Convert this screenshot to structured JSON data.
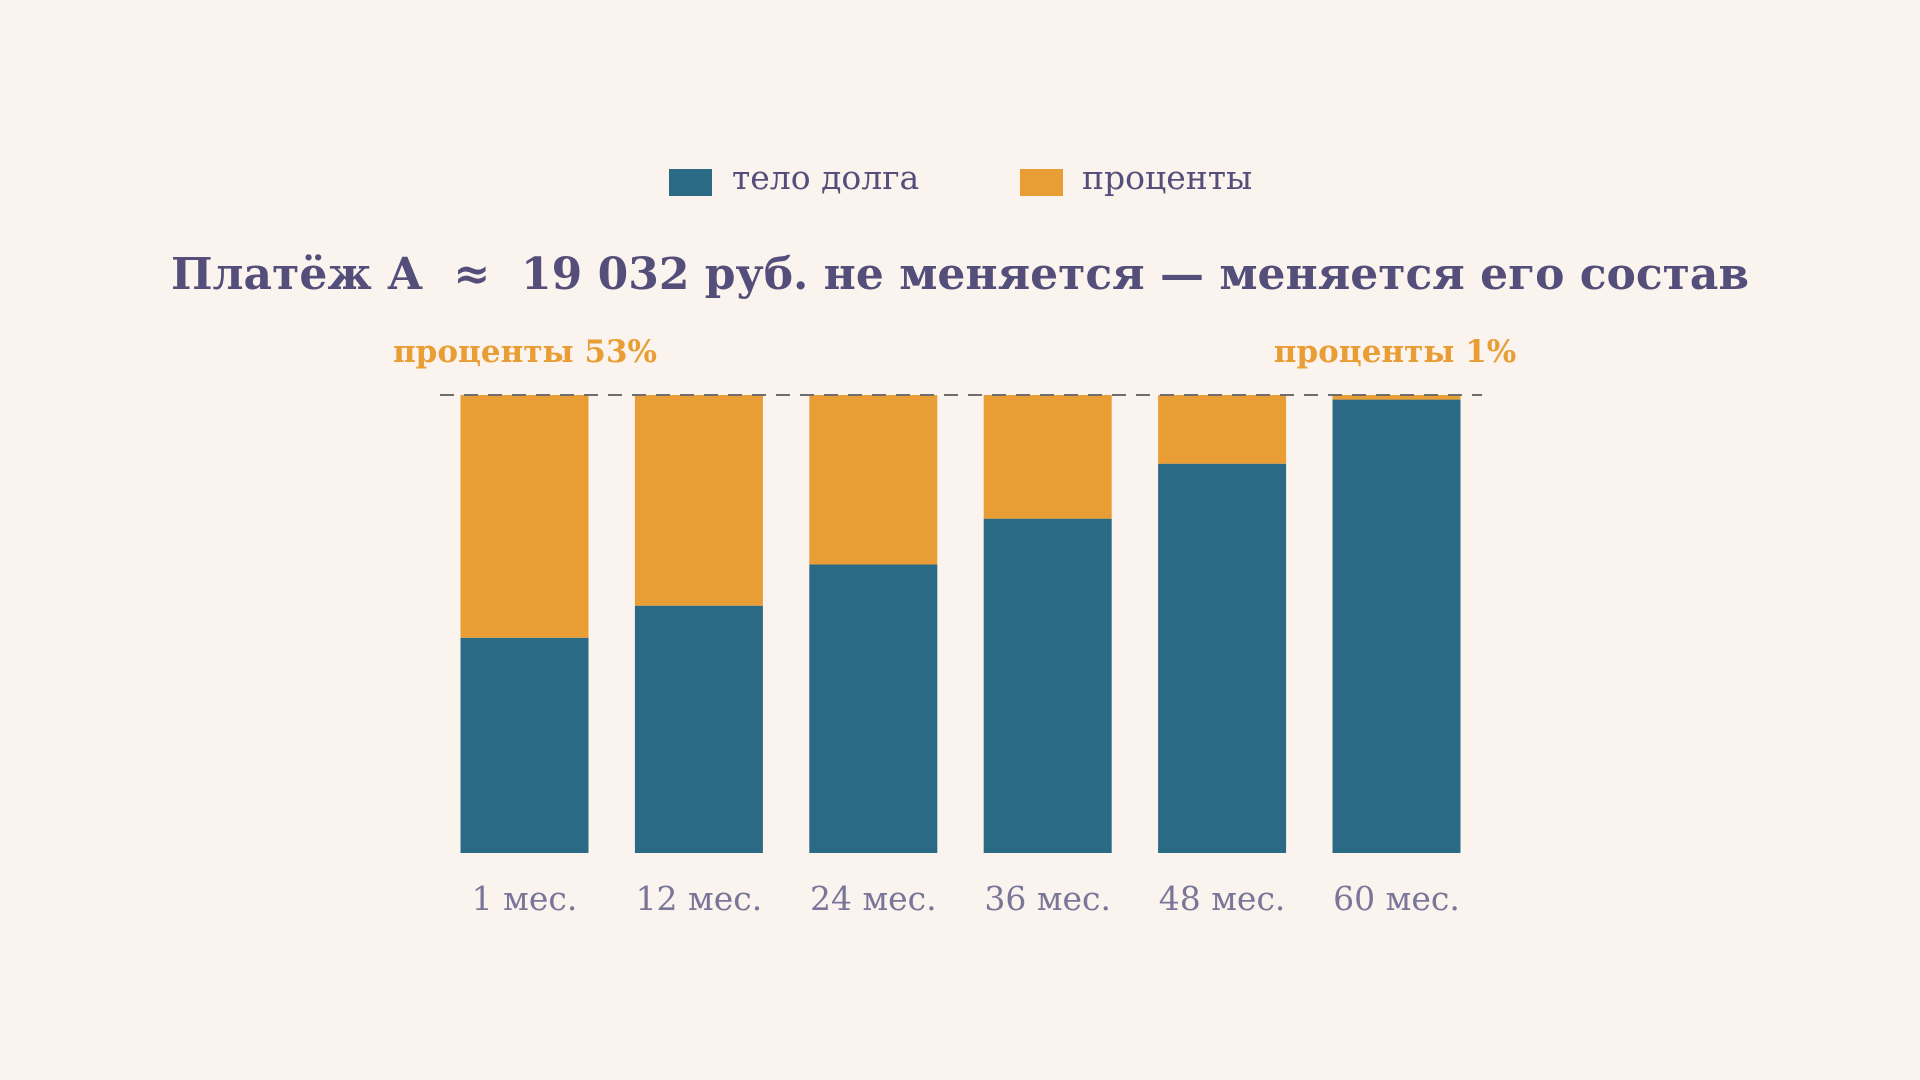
{
  "colors": {
    "background": "#FBF4EE",
    "principal": "#2A6A84",
    "interest": "#E99E35",
    "title": "#544F7A",
    "axis_text": "#7A7699",
    "reference_line": "#6E6E6E"
  },
  "chart_data": {
    "type": "bar",
    "stacked": true,
    "title": "Платёж А  ≈  19 032 руб. не меняется — меняется его состав",
    "legend": {
      "position": "top-center",
      "items": [
        "тело долга",
        "проценты"
      ]
    },
    "categories": [
      "1 мес.",
      "12 мес.",
      "24 мес.",
      "36 мес.",
      "48 мес.",
      "60 мес."
    ],
    "series": [
      {
        "name": "тело долга",
        "values": [
          47,
          54,
          63,
          73,
          85,
          99
        ]
      },
      {
        "name": "проценты",
        "values": [
          53,
          46,
          37,
          27,
          15,
          1
        ]
      }
    ],
    "ylim": [
      0,
      100
    ],
    "reference_line": {
      "value": 100,
      "style": "dashed"
    },
    "annotations": {
      "first": "проценты 53%",
      "last": "проценты 1%"
    }
  }
}
